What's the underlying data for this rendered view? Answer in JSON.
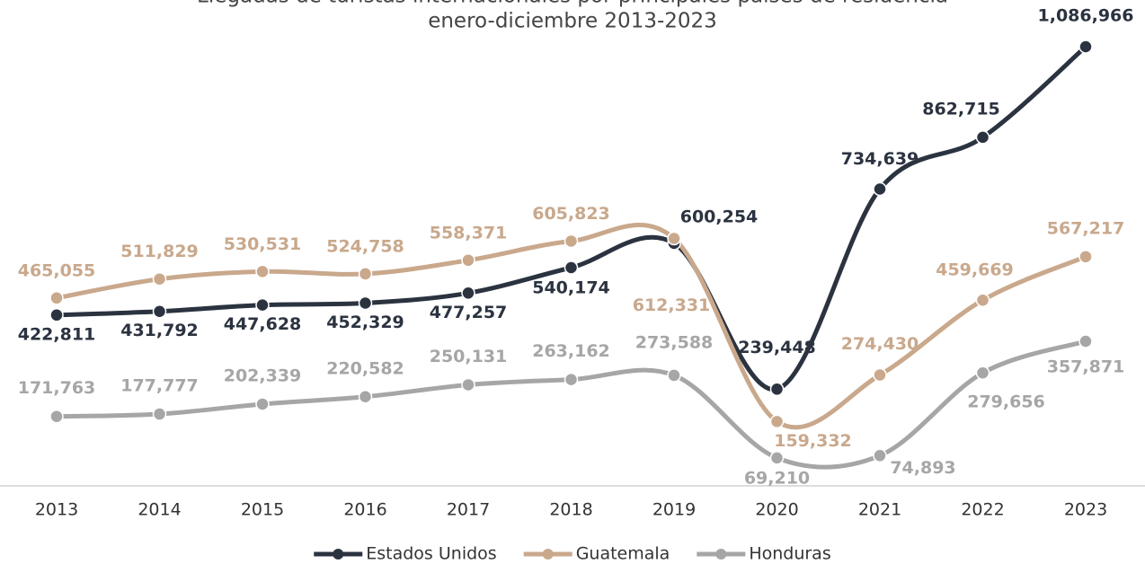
{
  "chart_data": {
    "type": "line",
    "title": "Llegadas de turistas internacionales por principales países de residencia",
    "subtitle": "enero-diciembre 2013-2023",
    "categories": [
      "2013",
      "2014",
      "2015",
      "2016",
      "2017",
      "2018",
      "2019",
      "2020",
      "2021",
      "2022",
      "2023"
    ],
    "series": [
      {
        "name": "Estados Unidos",
        "color": "#2b3340",
        "values": [
          422811,
          431792,
          447628,
          452329,
          477257,
          540174,
          600254,
          239448,
          734639,
          862715,
          1086966
        ],
        "value_labels": [
          "422,811",
          "431,792",
          "447,628",
          "452,329",
          "477,257",
          "540,174",
          "600,254",
          "239,448",
          "734,639",
          "862,715",
          "1,086,966"
        ]
      },
      {
        "name": "Guatemala",
        "color": "#c9a88c",
        "values": [
          465055,
          511829,
          530531,
          524758,
          558371,
          605823,
          612331,
          159332,
          274430,
          459669,
          567217
        ],
        "value_labels": [
          "465,055",
          "511,829",
          "530,531",
          "524,758",
          "558,371",
          "605,823",
          "612,331",
          "159,332",
          "274,430",
          "459,669",
          "567,217"
        ]
      },
      {
        "name": "Honduras",
        "color": "#a6a6a6",
        "values": [
          171763,
          177777,
          202339,
          220582,
          250131,
          263162,
          273588,
          69210,
          74893,
          279656,
          357871
        ],
        "value_labels": [
          "171,763",
          "177,777",
          "202,339",
          "220,582",
          "250,131",
          "263,162",
          "273,588",
          "69,210",
          "74,893",
          "279,656",
          "357,871"
        ]
      }
    ]
  }
}
